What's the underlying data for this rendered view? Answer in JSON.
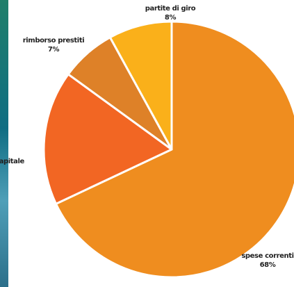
{
  "chart_data": {
    "type": "pie",
    "categories": [
      "spese correnti",
      "capitale",
      "rimborso prestiti",
      "partite di giro"
    ],
    "values": [
      68,
      17,
      7,
      8
    ],
    "value_labels": [
      "68%",
      null,
      "7%",
      "8%"
    ],
    "colors": [
      "#ef8d1f",
      "#f26623",
      "#de8128",
      "#fab01a"
    ]
  }
}
